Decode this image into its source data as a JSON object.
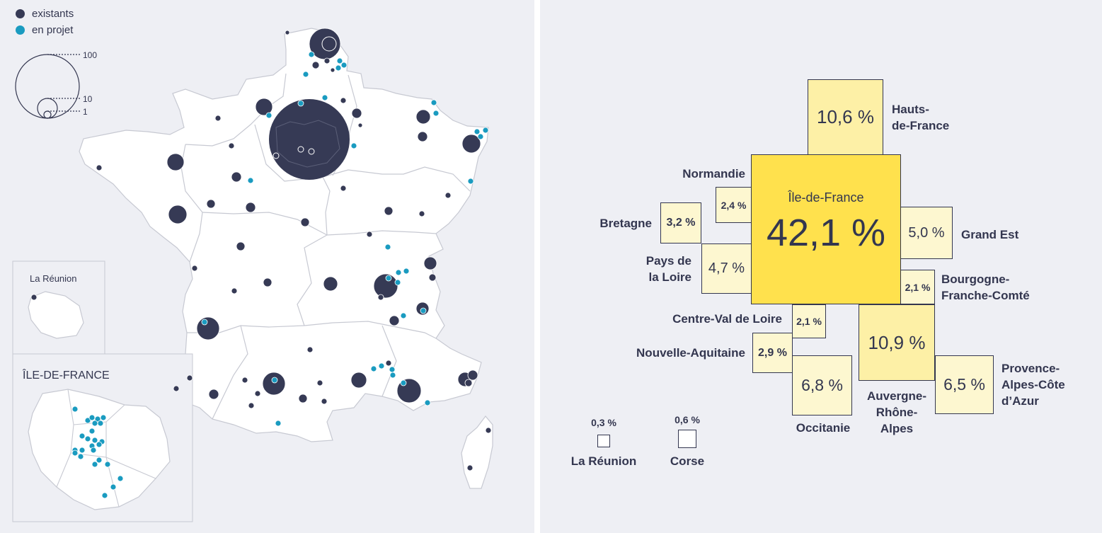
{
  "legend": {
    "existing_label": "existants",
    "planned_label": "en projet",
    "existing_color": "#363a55",
    "planned_color": "#1a9bc0",
    "size_values": [
      "100",
      "10",
      "1"
    ]
  },
  "insets": {
    "reunion_title": "La Réunion",
    "idf_title": "ÎLE-DE-FRANCE"
  },
  "treemap": {
    "center": {
      "name": "Île-de-France",
      "pct": "42,1 %"
    },
    "regions": [
      {
        "key": "hdf",
        "label": "Hauts-\nde-France",
        "pct": "10,6 %"
      },
      {
        "key": "normandie",
        "label": "Normandie",
        "pct": "2,4 %"
      },
      {
        "key": "bretagne",
        "label": "Bretagne",
        "pct": "3,2 %"
      },
      {
        "key": "grandest",
        "label": "Grand Est",
        "pct": "5,0 %"
      },
      {
        "key": "paysdelaloire",
        "label": "Pays de\nla Loire",
        "pct": "4,7 %"
      },
      {
        "key": "bfc",
        "label": "Bourgogne-\nFranche-Comté",
        "pct": "2,1 %"
      },
      {
        "key": "cvl",
        "label": "Centre-Val de Loire",
        "pct": "2,1 %"
      },
      {
        "key": "ara",
        "label": "Auvergne-\nRhône-\nAlpes",
        "pct": "10,9 %"
      },
      {
        "key": "na",
        "label": "Nouvelle-Aquitaine",
        "pct": "2,9 %"
      },
      {
        "key": "occitanie",
        "label": "Occitanie",
        "pct": "6,8 %"
      },
      {
        "key": "paca",
        "label": "Provence-\nAlpes-Côte\nd’Azur",
        "pct": "6,5 %"
      },
      {
        "key": "reunion",
        "label": "La Réunion",
        "pct": "0,3 %"
      },
      {
        "key": "corse",
        "label": "Corse",
        "pct": "0,6 %"
      }
    ],
    "colors": {
      "center": "#ffe14d",
      "strong": "#fdf0a6",
      "light": "#fdf7d0"
    }
  }
}
